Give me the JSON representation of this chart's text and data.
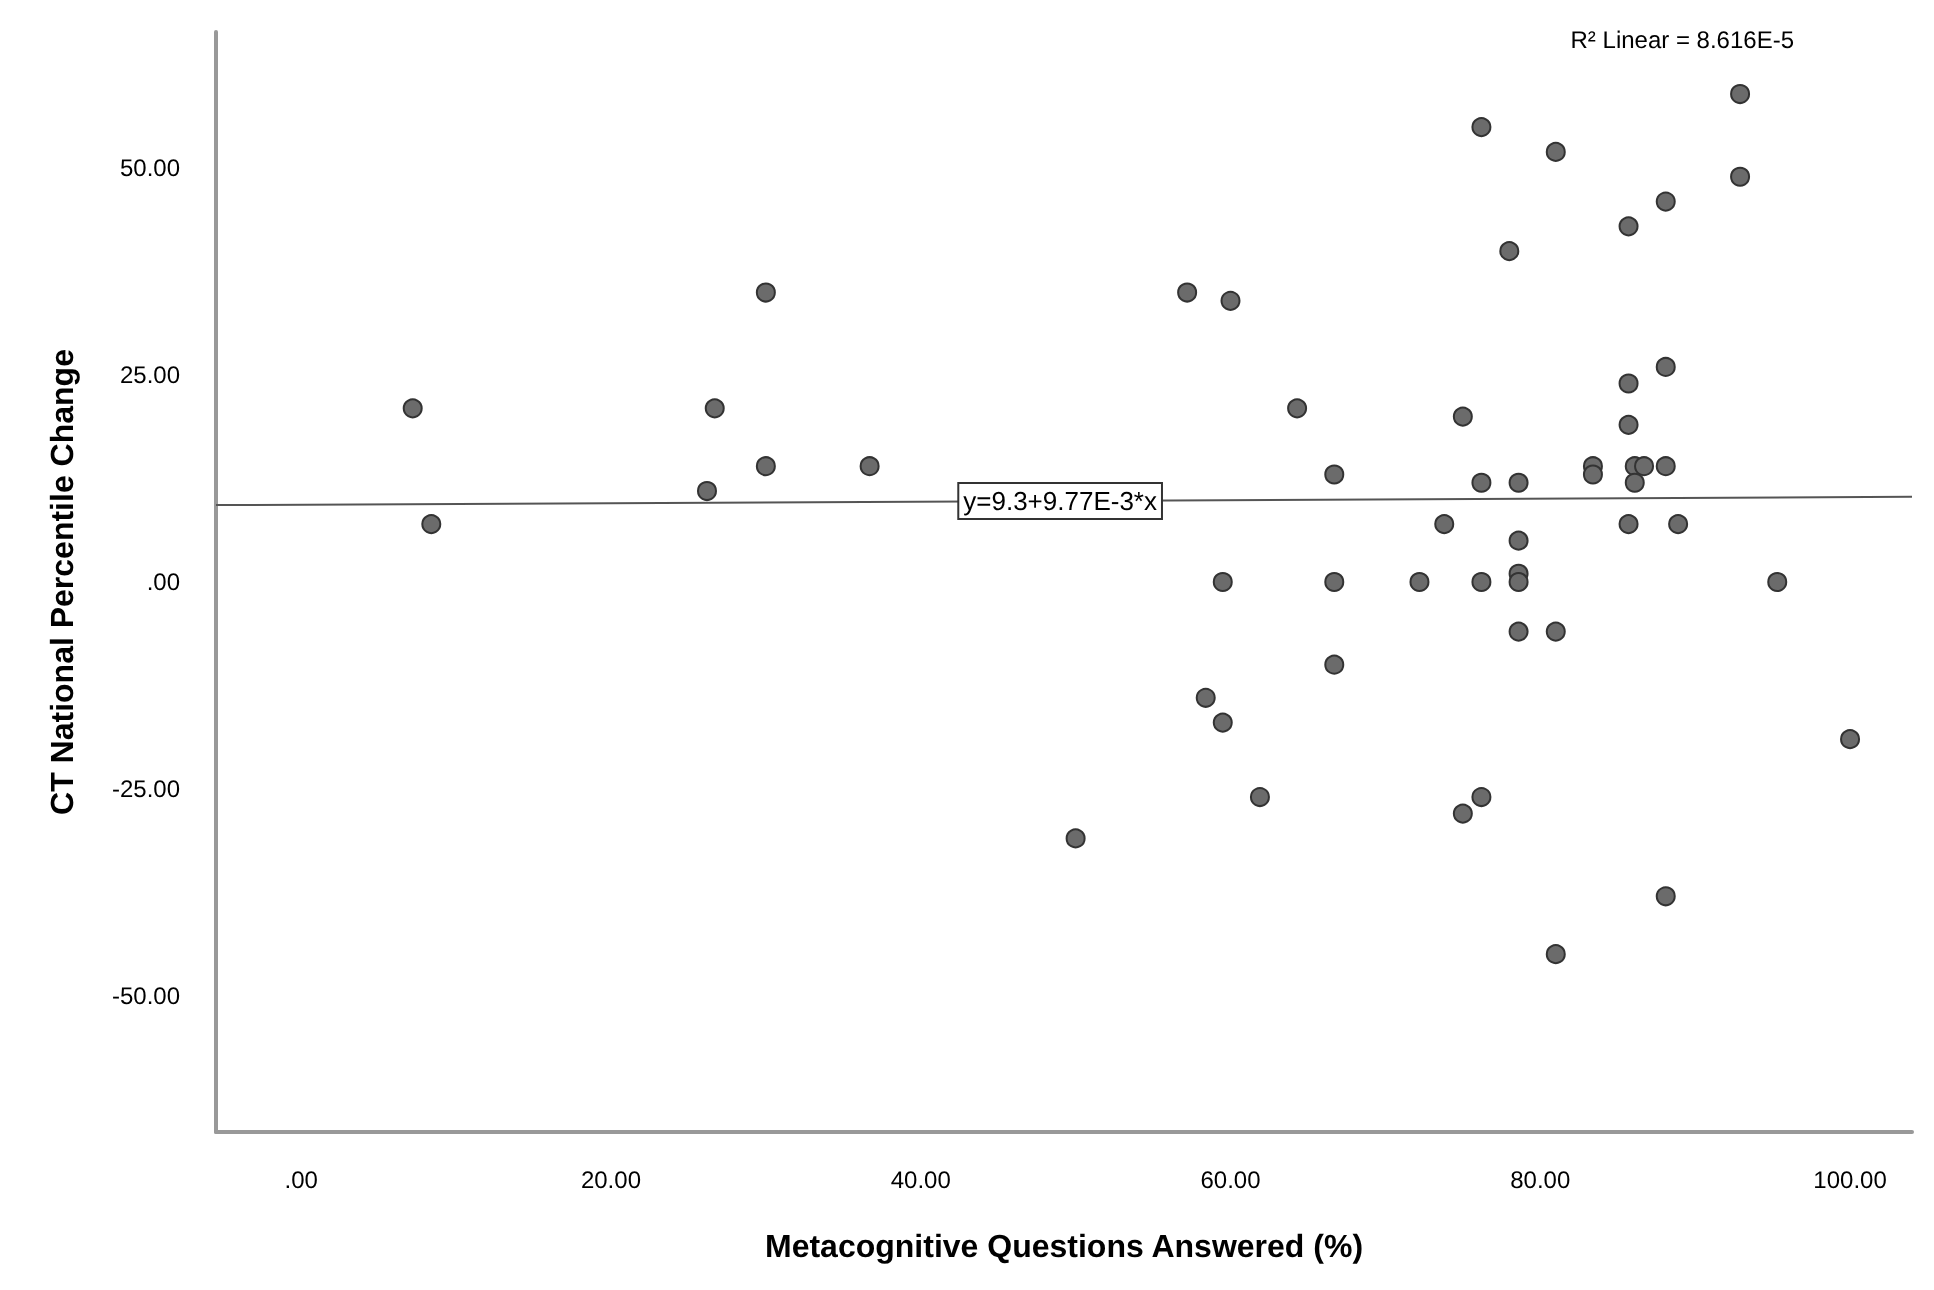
{
  "chart_data": {
    "type": "scatter",
    "xlabel": "Metacognitive Questions Answered (%)",
    "ylabel": "CT National Percentile Change",
    "xlim": [
      -5.5,
      104
    ],
    "ylim": [
      -66.5,
      66.5
    ],
    "xticks": [
      {
        "value": 0,
        "label": ".00"
      },
      {
        "value": 20,
        "label": "20.00"
      },
      {
        "value": 40,
        "label": "40.00"
      },
      {
        "value": 60,
        "label": "60.00"
      },
      {
        "value": 80,
        "label": "80.00"
      },
      {
        "value": 100,
        "label": "100.00"
      }
    ],
    "yticks": [
      {
        "value": -50,
        "label": "-50.00"
      },
      {
        "value": -25,
        "label": "-25.00"
      },
      {
        "value": 0,
        "label": ".00"
      },
      {
        "value": 25,
        "label": "25.00"
      },
      {
        "value": 50,
        "label": "50.00"
      }
    ],
    "grid": false,
    "marker": "circle",
    "series": [
      {
        "color": "#6b6b6b",
        "x": [
          7.2,
          8.4,
          30,
          26.7,
          26.2,
          30,
          36.7,
          92.9,
          76.2,
          81,
          92.9,
          88.1,
          85.7,
          78,
          57.2,
          60,
          88.1,
          85.7,
          64.3,
          75,
          85.7,
          83.4,
          83.4,
          86.1,
          86.7,
          88.1,
          86.1,
          66.7,
          76.2,
          78.6,
          73.8,
          85.7,
          88.9,
          78.6,
          78.6,
          78.6,
          59.5,
          66.7,
          72.2,
          76.2,
          95.3,
          78.6,
          81,
          50,
          58.4,
          59.5,
          66.7,
          61.9,
          75,
          76.2,
          100,
          88.1,
          81
        ],
        "values": [
          21,
          7,
          35,
          21,
          11,
          14,
          14,
          59,
          55,
          52,
          49,
          46,
          43,
          40,
          35,
          34,
          26,
          24,
          21,
          20,
          19,
          14,
          13,
          14,
          14,
          14,
          12,
          13,
          12,
          12,
          7,
          7,
          7,
          5,
          1,
          0,
          0,
          0,
          0,
          0,
          0,
          -6,
          -6,
          -31,
          -14,
          -17,
          -10,
          -26,
          -28,
          -26,
          -19,
          -38,
          -45
        ]
      },
      {
        "type": "line",
        "color": "#555555",
        "marker": "none",
        "x": [
          -5.5,
          104
        ],
        "values": [
          9.3,
          10.3
        ]
      }
    ],
    "annotations": [
      {
        "text": "y=9.3+9.77E-3*x",
        "x": 49,
        "y": 9.78
      },
      "R² Linear = 8.616E-5"
    ]
  }
}
